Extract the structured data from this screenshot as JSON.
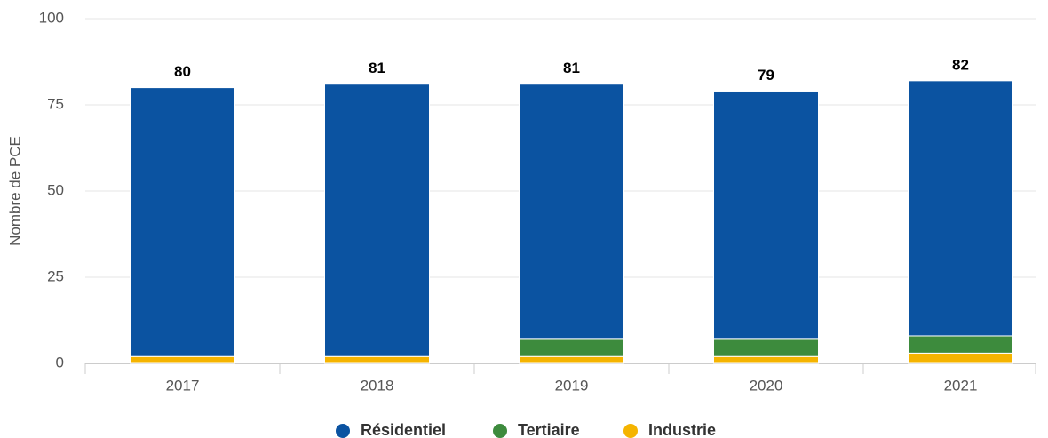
{
  "chart_data": {
    "type": "stacked_bar",
    "y_label": "Nombre de PCE",
    "categories": [
      "2017",
      "2018",
      "2019",
      "2020",
      "2021"
    ],
    "series": [
      {
        "name": "Résidentiel",
        "color": "#0b53a1",
        "values": [
          78,
          79,
          74,
          72,
          74
        ]
      },
      {
        "name": "Tertiaire",
        "color": "#3d8b3d",
        "values": [
          0,
          0,
          5,
          5,
          5
        ]
      },
      {
        "name": "Industrie",
        "color": "#f5b400",
        "values": [
          2,
          2,
          2,
          2,
          3
        ]
      }
    ],
    "totals": [
      80,
      81,
      81,
      79,
      82
    ],
    "ylim": [
      0,
      100
    ],
    "yticks": [
      0,
      25,
      50,
      75,
      100
    ],
    "grid": true
  }
}
